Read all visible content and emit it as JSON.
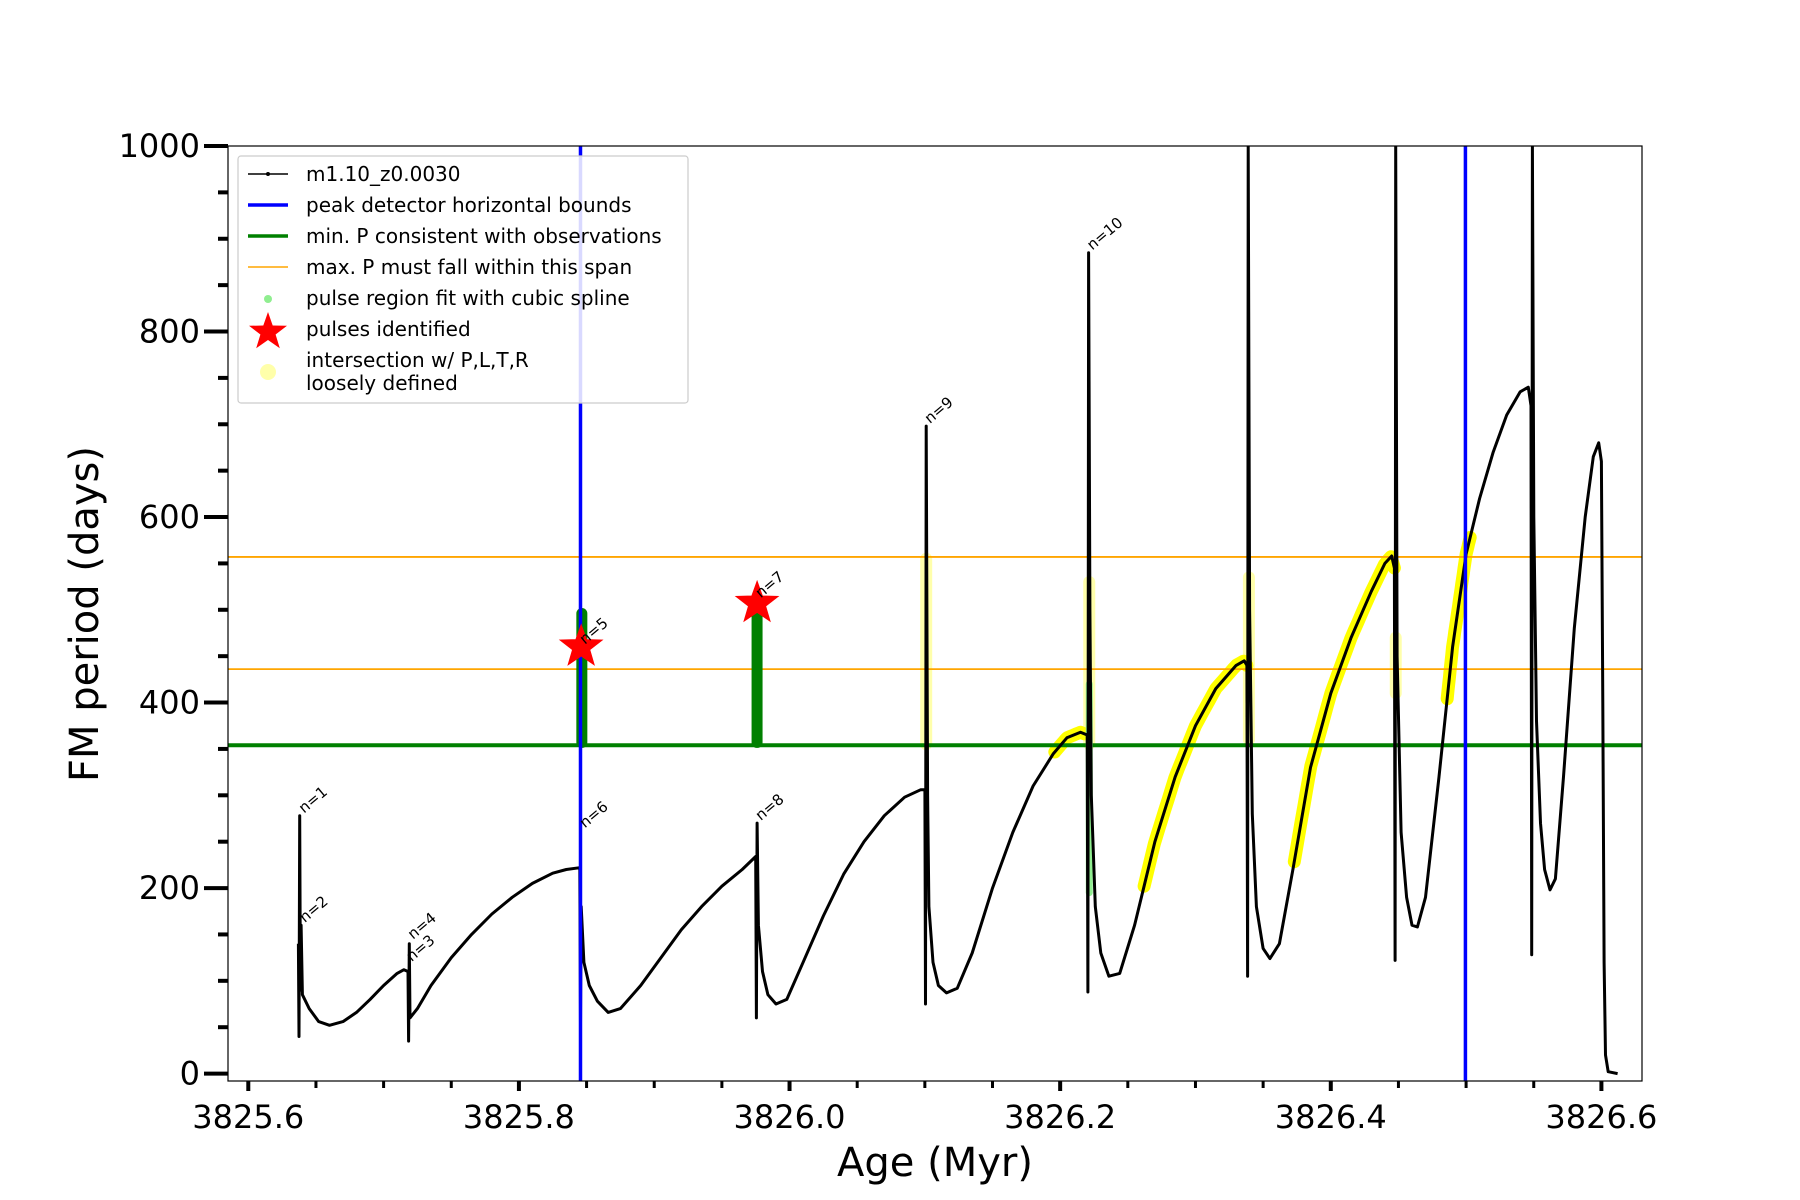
{
  "chart_data": {
    "type": "line",
    "xlabel": "Age (Myr)",
    "ylabel": "FM period (days)",
    "xlim": [
      3825.585,
      3826.63
    ],
    "ylim": [
      -8,
      1000
    ],
    "xticks": [
      3825.6,
      3825.8,
      3826.0,
      3826.2,
      3826.4,
      3826.6
    ],
    "xtick_labels": [
      "3825.6",
      "3825.8",
      "3826.0",
      "3826.2",
      "3826.4",
      "3826.6"
    ],
    "yticks": [
      0,
      200,
      400,
      600,
      800,
      1000
    ],
    "ytick_labels": [
      "0",
      "200",
      "400",
      "600",
      "800",
      "1000"
    ],
    "legend": {
      "position": "upper-left",
      "entries": [
        {
          "label": "m1.10_z0.0030",
          "style": "line-marker",
          "color": "#000000"
        },
        {
          "label": "peak detector horizontal bounds",
          "style": "line",
          "color": "#0000ff"
        },
        {
          "label": "min. P consistent with observations",
          "style": "line",
          "color": "#008000"
        },
        {
          "label": "max. P must fall within this span",
          "style": "thin-line",
          "color": "#ffa500"
        },
        {
          "label": "pulse region fit with cubic spline",
          "style": "dot",
          "color": "#90ee90"
        },
        {
          "label": "pulses identified",
          "style": "star",
          "color": "#ff0000"
        },
        {
          "label": "intersection w/ P,L,T,R",
          "label2": "loosely defined",
          "style": "big-dot",
          "color": "#ffffaa"
        }
      ]
    },
    "series": [
      {
        "name": "m1.10_z0.0030",
        "color": "#000000",
        "points": [
          [
            3825.637,
            140
          ],
          [
            3825.6375,
            40
          ],
          [
            3825.638,
            278
          ],
          [
            3825.6385,
            90
          ],
          [
            3825.639,
            160
          ],
          [
            3825.64,
            85
          ],
          [
            3825.645,
            70
          ],
          [
            3825.652,
            56
          ],
          [
            3825.66,
            52
          ],
          [
            3825.67,
            56
          ],
          [
            3825.68,
            66
          ],
          [
            3825.69,
            80
          ],
          [
            3825.7,
            95
          ],
          [
            3825.71,
            108
          ],
          [
            3825.715,
            112
          ],
          [
            3825.718,
            110
          ],
          [
            3825.7185,
            35
          ],
          [
            3825.719,
            140
          ],
          [
            3825.7195,
            60
          ],
          [
            3825.725,
            70
          ],
          [
            3825.735,
            95
          ],
          [
            3825.75,
            125
          ],
          [
            3825.765,
            150
          ],
          [
            3825.78,
            172
          ],
          [
            3825.795,
            190
          ],
          [
            3825.81,
            205
          ],
          [
            3825.825,
            216
          ],
          [
            3825.835,
            220
          ],
          [
            3825.845,
            222
          ],
          [
            3825.8455,
            55
          ],
          [
            3825.846,
            180
          ],
          [
            3825.848,
            120
          ],
          [
            3825.852,
            95
          ],
          [
            3825.858,
            78
          ],
          [
            3825.866,
            66
          ],
          [
            3825.875,
            70
          ],
          [
            3825.89,
            95
          ],
          [
            3825.905,
            125
          ],
          [
            3825.92,
            155
          ],
          [
            3825.935,
            180
          ],
          [
            3825.95,
            202
          ],
          [
            3825.965,
            220
          ],
          [
            3825.975,
            234
          ],
          [
            3825.9755,
            60
          ],
          [
            3825.976,
            270
          ],
          [
            3825.977,
            160
          ],
          [
            3825.98,
            110
          ],
          [
            3825.984,
            85
          ],
          [
            3825.99,
            75
          ],
          [
            3825.998,
            80
          ],
          [
            3826.01,
            120
          ],
          [
            3826.025,
            170
          ],
          [
            3826.04,
            215
          ],
          [
            3826.055,
            250
          ],
          [
            3826.07,
            278
          ],
          [
            3826.085,
            298
          ],
          [
            3826.097,
            306
          ],
          [
            3826.1,
            306
          ],
          [
            3826.1005,
            75
          ],
          [
            3826.101,
            698
          ],
          [
            3826.102,
            300
          ],
          [
            3826.103,
            180
          ],
          [
            3826.106,
            120
          ],
          [
            3826.11,
            95
          ],
          [
            3826.116,
            87
          ],
          [
            3826.124,
            92
          ],
          [
            3826.135,
            130
          ],
          [
            3826.15,
            200
          ],
          [
            3826.165,
            260
          ],
          [
            3826.18,
            310
          ],
          [
            3826.195,
            345
          ],
          [
            3826.205,
            362
          ],
          [
            3826.215,
            368
          ],
          [
            3826.22,
            365
          ],
          [
            3826.2205,
            88
          ],
          [
            3826.221,
            885
          ],
          [
            3826.222,
            500
          ],
          [
            3826.223,
            300
          ],
          [
            3826.226,
            180
          ],
          [
            3826.23,
            130
          ],
          [
            3826.236,
            105
          ],
          [
            3826.244,
            108
          ],
          [
            3826.255,
            160
          ],
          [
            3826.27,
            250
          ],
          [
            3826.285,
            320
          ],
          [
            3826.3,
            375
          ],
          [
            3826.315,
            415
          ],
          [
            3826.33,
            440
          ],
          [
            3826.336,
            445
          ],
          [
            3826.338,
            440
          ],
          [
            3826.3385,
            105
          ],
          [
            3826.339,
            1000
          ],
          [
            3826.34,
            500
          ],
          [
            3826.342,
            280
          ],
          [
            3826.345,
            180
          ],
          [
            3826.35,
            135
          ],
          [
            3826.355,
            124
          ],
          [
            3826.362,
            140
          ],
          [
            3826.372,
            220
          ],
          [
            3826.385,
            330
          ],
          [
            3826.4,
            410
          ],
          [
            3826.415,
            470
          ],
          [
            3826.43,
            520
          ],
          [
            3826.44,
            550
          ],
          [
            3826.445,
            558
          ],
          [
            3826.447,
            545
          ],
          [
            3826.4475,
            122
          ],
          [
            3826.448,
            1000
          ],
          [
            3826.449,
            450
          ],
          [
            3826.452,
            260
          ],
          [
            3826.456,
            190
          ],
          [
            3826.46,
            160
          ],
          [
            3826.464,
            158
          ],
          [
            3826.47,
            190
          ],
          [
            3826.48,
            320
          ],
          [
            3826.49,
            460
          ],
          [
            3826.5,
            560
          ],
          [
            3826.51,
            620
          ],
          [
            3826.52,
            670
          ],
          [
            3826.53,
            710
          ],
          [
            3826.54,
            735
          ],
          [
            3826.546,
            740
          ],
          [
            3826.548,
            720
          ],
          [
            3826.5485,
            128
          ],
          [
            3826.549,
            1000
          ],
          [
            3826.55,
            600
          ],
          [
            3826.552,
            380
          ],
          [
            3826.555,
            270
          ],
          [
            3826.558,
            220
          ],
          [
            3826.562,
            198
          ],
          [
            3826.566,
            210
          ],
          [
            3826.572,
            320
          ],
          [
            3826.58,
            480
          ],
          [
            3826.588,
            600
          ],
          [
            3826.594,
            665
          ],
          [
            3826.598,
            680
          ],
          [
            3826.6,
            660
          ],
          [
            3826.601,
            400
          ],
          [
            3826.602,
            120
          ],
          [
            3826.603,
            20
          ],
          [
            3826.605,
            2
          ],
          [
            3826.612,
            0
          ]
        ]
      }
    ],
    "vertical_lines": [
      {
        "x": 3825.8455,
        "color": "#0000ff"
      },
      {
        "x": 3826.4995,
        "color": "#0000ff"
      }
    ],
    "horizontal_lines": [
      {
        "y": 354,
        "color": "#008000",
        "role": "min-P"
      },
      {
        "y": 436,
        "color": "#ffa500",
        "role": "max-P-lower"
      },
      {
        "y": 557,
        "color": "#ffa500",
        "role": "max-P-upper"
      }
    ],
    "spline_regions": [
      {
        "x": 3825.8465,
        "y_min": 355,
        "y_max": 496
      },
      {
        "x": 3825.976,
        "y_min": 355,
        "y_max": 496
      },
      {
        "x": 3826.2215,
        "y_min": 195,
        "y_max": 420
      }
    ],
    "pulses": [
      {
        "x": 3825.846,
        "y": 460
      },
      {
        "x": 3825.976,
        "y": 507
      }
    ],
    "intersections": [
      {
        "kind": "vertical",
        "x": 3826.101,
        "y_min": 355,
        "y_max": 555
      },
      {
        "kind": "vertical",
        "x": 3826.2215,
        "y_min": 355,
        "y_max": 530
      },
      {
        "kind": "vertical",
        "x": 3826.3395,
        "y_min": 360,
        "y_max": 535
      },
      {
        "kind": "vertical",
        "x": 3826.448,
        "y_min": 410,
        "y_max": 470
      },
      {
        "kind": "curve",
        "from": 3826.196,
        "to": 3826.218
      },
      {
        "kind": "curve",
        "from": 3826.262,
        "to": 3826.338
      },
      {
        "kind": "curve",
        "from": 3826.373,
        "to": 3826.447
      },
      {
        "kind": "curve",
        "from": 3826.486,
        "to": 3826.503
      }
    ],
    "annotations": [
      {
        "text": "n=1",
        "x": 3825.639,
        "y": 278
      },
      {
        "text": "n=2",
        "x": 3825.6395,
        "y": 160
      },
      {
        "text": "n=3",
        "x": 3825.7185,
        "y": 118
      },
      {
        "text": "n=4",
        "x": 3825.7195,
        "y": 142
      },
      {
        "text": "n=5",
        "x": 3825.8465,
        "y": 460
      },
      {
        "text": "n=6",
        "x": 3825.8465,
        "y": 262
      },
      {
        "text": "n=7",
        "x": 3825.9765,
        "y": 510
      },
      {
        "text": "n=8",
        "x": 3825.9765,
        "y": 270
      },
      {
        "text": "n=9",
        "x": 3826.1015,
        "y": 698
      },
      {
        "text": "n=10",
        "x": 3826.2215,
        "y": 885
      }
    ]
  }
}
